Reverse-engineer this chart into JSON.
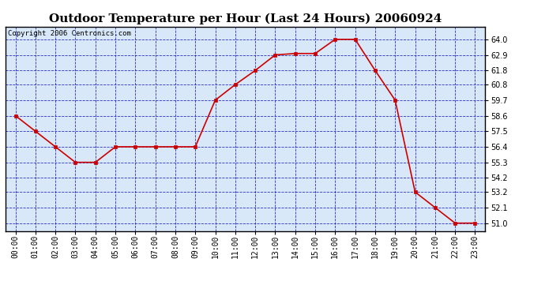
{
  "title": "Outdoor Temperature per Hour (Last 24 Hours) 20060924",
  "copyright": "Copyright 2006 Centronics.com",
  "hours": [
    "00:00",
    "01:00",
    "02:00",
    "03:00",
    "04:00",
    "05:00",
    "06:00",
    "07:00",
    "08:00",
    "09:00",
    "10:00",
    "11:00",
    "12:00",
    "13:00",
    "14:00",
    "15:00",
    "16:00",
    "17:00",
    "18:00",
    "19:00",
    "20:00",
    "21:00",
    "22:00",
    "23:00"
  ],
  "temps": [
    58.6,
    57.5,
    56.4,
    55.3,
    55.3,
    56.4,
    56.4,
    56.4,
    56.4,
    56.4,
    59.7,
    60.8,
    61.8,
    62.9,
    63.0,
    63.0,
    64.0,
    64.0,
    61.8,
    59.7,
    53.2,
    52.1,
    51.0,
    51.0
  ],
  "ylim_min": 50.45,
  "ylim_max": 64.9,
  "yticks": [
    51.0,
    52.1,
    53.2,
    54.2,
    55.3,
    56.4,
    57.5,
    58.6,
    59.7,
    60.8,
    61.8,
    62.9,
    64.0
  ],
  "line_color": "#cc0000",
  "marker_color": "#cc0000",
  "plot_bg": "#d8e8f8",
  "grid_color": "#0000bb",
  "title_fontsize": 11,
  "copyright_fontsize": 6.5,
  "tick_fontsize": 7,
  "ytick_fontsize": 7
}
